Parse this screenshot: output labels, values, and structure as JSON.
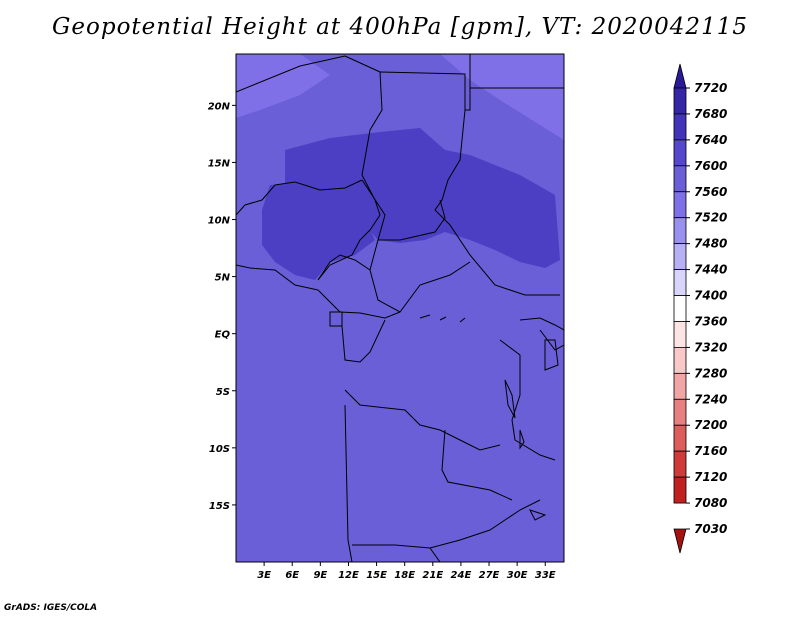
{
  "title": "Geopotential Height at 400hPa [gpm], VT: 2020042115",
  "credit": "GrADS: IGES/COLA",
  "map": {
    "lat_labels": [
      "20N",
      "15N",
      "10N",
      "5N",
      "EQ",
      "5S",
      "10S",
      "15S"
    ],
    "lat_values": [
      20,
      15,
      10,
      5,
      0,
      -5,
      -10,
      -15
    ],
    "lon_labels": [
      "3E",
      "6E",
      "9E",
      "12E",
      "15E",
      "18E",
      "21E",
      "24E",
      "27E",
      "30E",
      "33E"
    ],
    "lon_values": [
      3,
      6,
      9,
      12,
      15,
      18,
      21,
      24,
      27,
      30,
      33
    ],
    "lat_range": [
      -20,
      24.5
    ],
    "lon_range": [
      0,
      35
    ],
    "regions": [
      {
        "name": "sahara-north-band",
        "level": "7560-7600",
        "color": "#6a5fd6"
      },
      {
        "name": "chad-sudan-core",
        "level": "7600-7640",
        "color": "#4d3fc4"
      },
      {
        "name": "nigeria-core",
        "level": "7600-7640",
        "color": "#4d3fc4"
      },
      {
        "name": "southern-background",
        "level": "7560-7600",
        "color": "#6a5fd6"
      },
      {
        "name": "northeast-corner",
        "level": "7520-7560",
        "color": "#8070e8"
      }
    ]
  },
  "colorbar": {
    "labels": [
      "7720",
      "7680",
      "7640",
      "7600",
      "7560",
      "7520",
      "7480",
      "7440",
      "7400",
      "7360",
      "7320",
      "7280",
      "7240",
      "7200",
      "7160",
      "7120",
      "7080",
      "7030"
    ],
    "colors": [
      "#2a1a9a",
      "#3526a8",
      "#4233b8",
      "#5548cc",
      "#6a5fd6",
      "#8070e8",
      "#9a90f0",
      "#b8b0f5",
      "#d8d4fa",
      "#ffffff",
      "#fde4e4",
      "#f9c8c8",
      "#f1a6a6",
      "#e78080",
      "#dd5d5d",
      "#d13a3a",
      "#c02020",
      "#a51010"
    ]
  }
}
